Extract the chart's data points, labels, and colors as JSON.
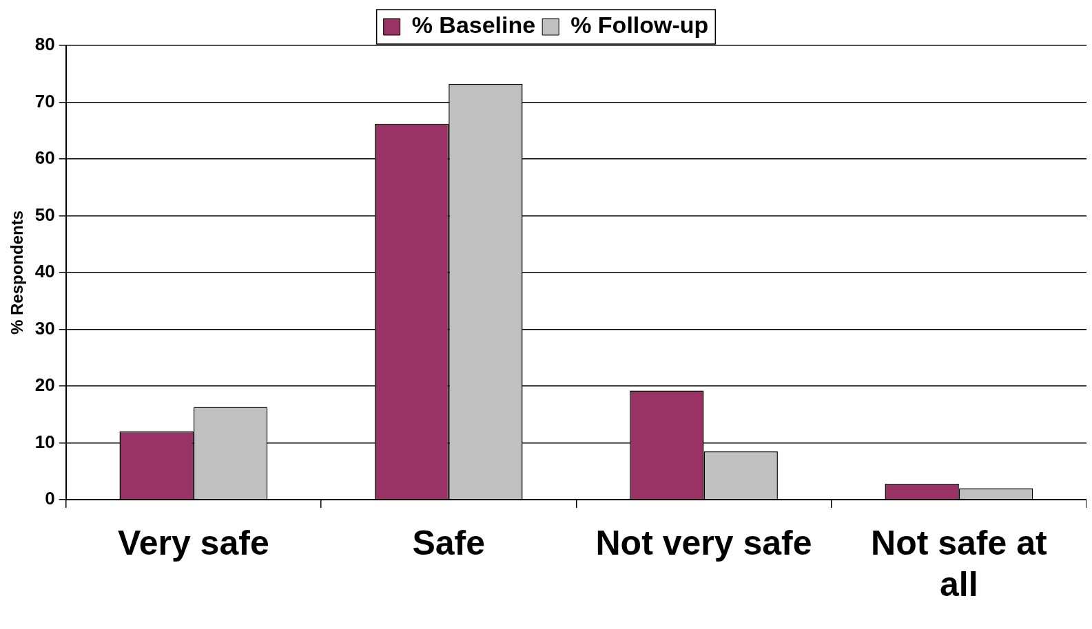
{
  "chart_data": {
    "type": "bar",
    "ylabel": "% Respondents",
    "categories": [
      "Very safe",
      "Safe",
      "Not very safe",
      "Not safe at all"
    ],
    "series": [
      {
        "name": "% Baseline",
        "color": "#993366",
        "values": [
          12,
          66.2,
          19.2,
          2.8
        ]
      },
      {
        "name": "% Follow-up",
        "color": "#c0c0c0",
        "values": [
          16.3,
          73.2,
          8.5,
          2
        ]
      }
    ],
    "ylim": [
      0,
      80
    ],
    "yticks": [
      0,
      10,
      20,
      30,
      40,
      50,
      60,
      70,
      80
    ],
    "grid": "y",
    "legend": "top"
  }
}
